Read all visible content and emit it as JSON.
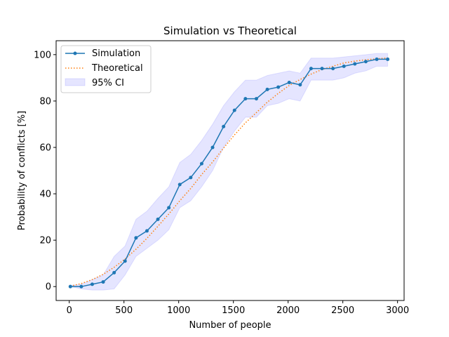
{
  "chart_data": {
    "type": "line",
    "title": "Simulation vs Theoretical",
    "xlabel": "Number of people",
    "ylabel": "Probability of conflicts [%]",
    "xlim": [
      -120,
      3060
    ],
    "ylim": [
      -6,
      106
    ],
    "xticks": [
      0,
      500,
      1000,
      1500,
      2000,
      2500,
      3000
    ],
    "yticks": [
      0,
      20,
      40,
      60,
      80,
      100
    ],
    "grid": false,
    "legend_position": "top-left",
    "x": [
      10,
      110,
      210,
      310,
      410,
      510,
      610,
      710,
      810,
      910,
      1010,
      1110,
      1210,
      1310,
      1410,
      1510,
      1610,
      1710,
      1810,
      1910,
      2010,
      2110,
      2210,
      2310,
      2410,
      2510,
      2610,
      2710,
      2810,
      2910
    ],
    "series": [
      {
        "name": "Simulation",
        "style": "solid-with-markers",
        "color": "#1f77b4",
        "values": [
          0,
          0,
          1,
          2,
          6,
          11,
          21,
          24,
          29,
          34,
          44,
          47,
          53,
          60,
          69,
          76,
          81,
          81,
          85,
          86,
          88,
          87,
          94,
          94,
          94,
          95,
          96,
          97,
          98,
          98
        ]
      },
      {
        "name": "Theoretical",
        "style": "dotted",
        "color": "#ff7f0e",
        "values": [
          0.2,
          1.3,
          3.0,
          5.3,
          8.3,
          11.9,
          16.1,
          20.8,
          26.0,
          31.3,
          37.0,
          42.3,
          48.3,
          53.7,
          59.7,
          65.4,
          70.6,
          75.0,
          79.5,
          83.3,
          86.7,
          89.3,
          91.6,
          93.6,
          95.0,
          96.4,
          97.2,
          97.8,
          98.2,
          98.6
        ]
      }
    ],
    "band": {
      "name": "95% CI",
      "color": "#0000ff",
      "opacity": 0.1,
      "lower": [
        0,
        -1,
        -1.5,
        -1.5,
        -1,
        5,
        13,
        16.5,
        20,
        24.5,
        34,
        37,
        43,
        50,
        60,
        67,
        73,
        73,
        78,
        79,
        81,
        80,
        89,
        89,
        89,
        90,
        92,
        93,
        95,
        95
      ],
      "upper": [
        0.5,
        1,
        3,
        5,
        13,
        17.5,
        29,
        32.5,
        38,
        43,
        53.5,
        57,
        63,
        70,
        78,
        84,
        89,
        89,
        91,
        92,
        93,
        92,
        98.5,
        98.5,
        98.5,
        99,
        99.5,
        100,
        100.5,
        100.5
      ]
    }
  }
}
